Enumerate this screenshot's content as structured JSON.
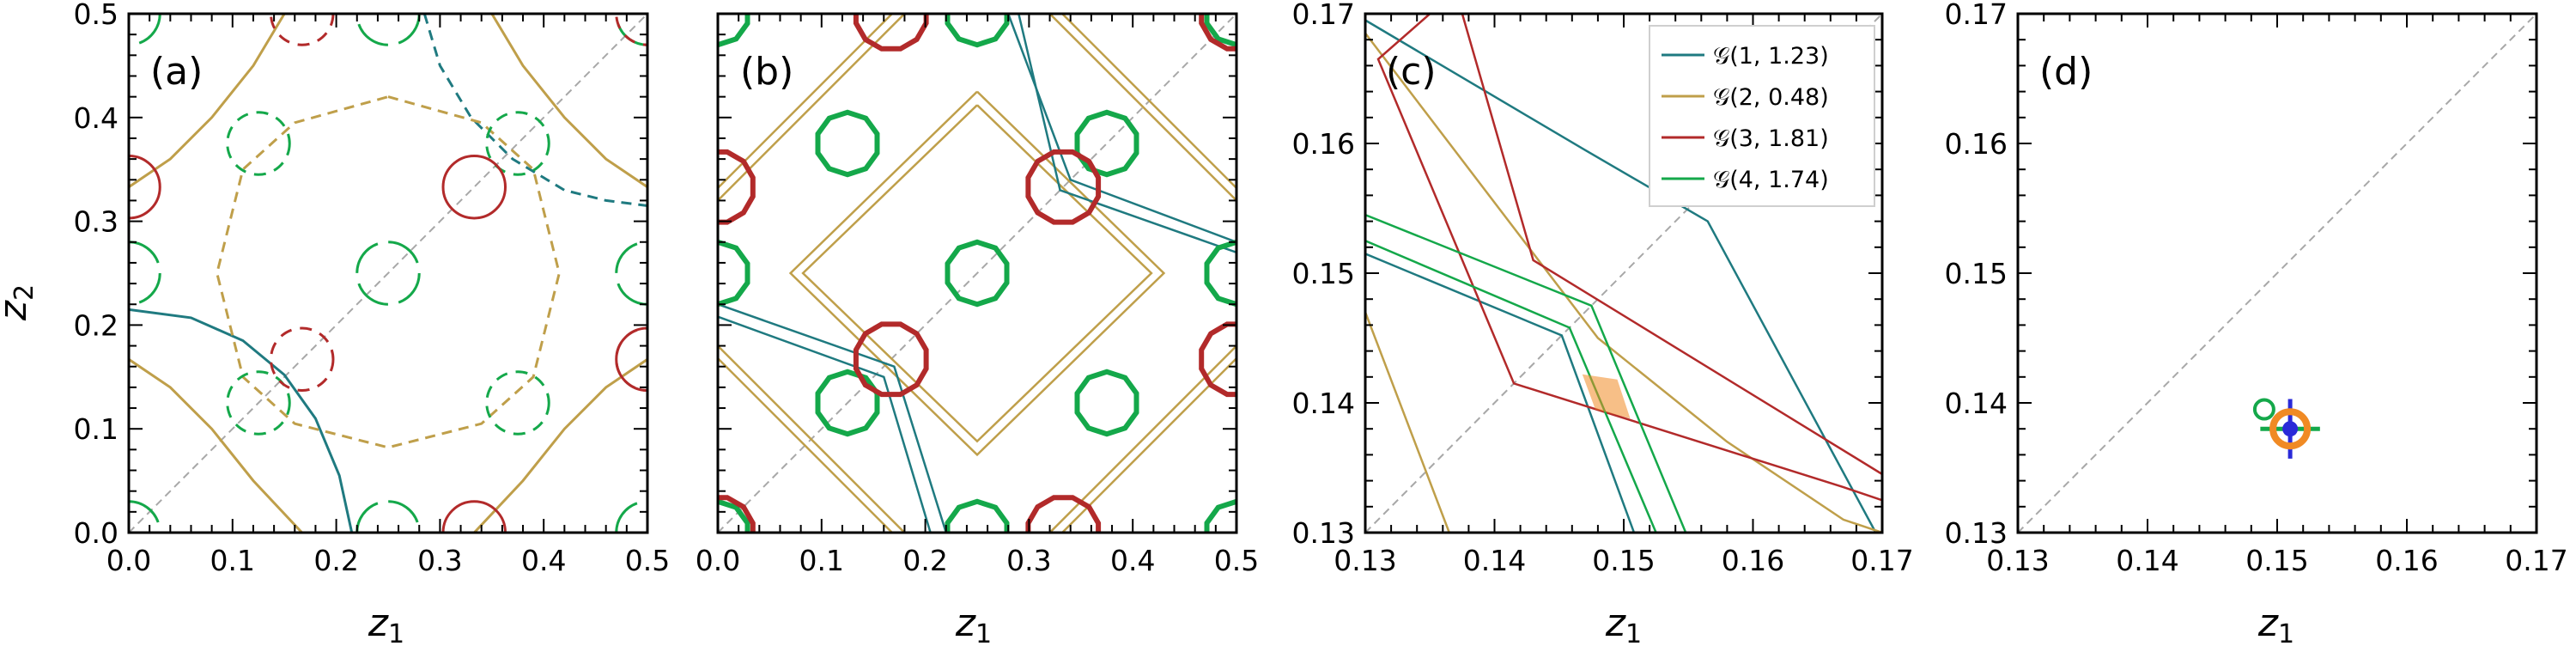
{
  "colors": {
    "teal": "#1f7a80",
    "gold": "#bf9f4a",
    "red": "#b22a2a",
    "green": "#14a84a",
    "orange": "#f08a24",
    "blue": "#2a2ad8",
    "diag": "#a8a8a8"
  },
  "axes": {
    "xlabel": "z",
    "xlabel_sub": "1",
    "ylabel": "z",
    "ylabel_sub": "2"
  },
  "legend": {
    "items": [
      {
        "label": "𝒢(1, 1.23)",
        "color": "#1f7a80"
      },
      {
        "label": "𝒢(2, 0.48)",
        "color": "#bf9f4a"
      },
      {
        "label": "𝒢(3, 1.81)",
        "color": "#b22a2a"
      },
      {
        "label": "𝒢(4, 1.74)",
        "color": "#14a84a"
      }
    ]
  },
  "chart_data": [
    {
      "panel": "(a)",
      "type": "line",
      "xlim": [
        0,
        0.5
      ],
      "ylim": [
        0,
        0.5
      ],
      "xticks": [
        "0.0",
        "0.1",
        "0.2",
        "0.3",
        "0.4",
        "0.5"
      ],
      "yticks": [
        "0.0",
        "0.1",
        "0.2",
        "0.3",
        "0.4",
        "0.5"
      ],
      "diagonal": true,
      "circles": [
        {
          "color": "green",
          "r": 0.03,
          "style": "dashed",
          "centers": [
            [
              0.125,
              0.125
            ],
            [
              0.375,
              0.125
            ],
            [
              0.125,
              0.375
            ],
            [
              0.375,
              0.375
            ]
          ]
        },
        {
          "color": "green",
          "r": 0.03,
          "style": "broken",
          "centers": [
            [
              0.25,
              0.25
            ],
            [
              0,
              0.25
            ],
            [
              0.5,
              0.25
            ],
            [
              0.25,
              0
            ],
            [
              0.25,
              0.5
            ],
            [
              0,
              0
            ],
            [
              0.5,
              0
            ],
            [
              0,
              0.5
            ],
            [
              0.5,
              0.5
            ]
          ]
        },
        {
          "color": "red",
          "r": 0.03,
          "style": "solid",
          "centers": [
            [
              0.333,
              0.333
            ],
            [
              0,
              0.333
            ],
            [
              0.333,
              0
            ],
            [
              0.5,
              0.167
            ]
          ]
        },
        {
          "color": "red",
          "r": 0.03,
          "style": "dashed",
          "centers": [
            [
              0.167,
              0.167
            ],
            [
              0.167,
              0.5
            ],
            [
              0.5,
              0.5
            ],
            [
              0.5,
              0.167
            ]
          ]
        }
      ],
      "curves": [
        {
          "color": "teal",
          "style": "solid",
          "points": [
            [
              0,
              0.215
            ],
            [
              0.06,
              0.207
            ],
            [
              0.11,
              0.185
            ],
            [
              0.15,
              0.152
            ],
            [
              0.18,
              0.11
            ],
            [
              0.203,
              0.055
            ],
            [
              0.215,
              0
            ]
          ]
        },
        {
          "color": "teal",
          "style": "dashed",
          "points": [
            [
              0.285,
              0.5
            ],
            [
              0.3,
              0.45
            ],
            [
              0.33,
              0.4
            ],
            [
              0.37,
              0.36
            ],
            [
              0.42,
              0.33
            ],
            [
              0.46,
              0.32
            ],
            [
              0.5,
              0.315
            ]
          ]
        },
        {
          "color": "gold",
          "style": "dashed",
          "points": [
            [
              0.25,
              0.42
            ],
            [
              0.34,
              0.395
            ],
            [
              0.39,
              0.35
            ],
            [
              0.415,
              0.25
            ],
            [
              0.39,
              0.15
            ],
            [
              0.34,
              0.105
            ],
            [
              0.25,
              0.082
            ],
            [
              0.16,
              0.105
            ],
            [
              0.11,
              0.15
            ],
            [
              0.085,
              0.25
            ],
            [
              0.11,
              0.35
            ],
            [
              0.16,
              0.395
            ],
            [
              0.25,
              0.42
            ]
          ]
        },
        {
          "color": "gold",
          "style": "solid",
          "points": [
            [
              0,
              0.333
            ],
            [
              0.04,
              0.36
            ],
            [
              0.08,
              0.4
            ],
            [
              0.12,
              0.45
            ],
            [
              0.15,
              0.5
            ]
          ]
        },
        {
          "color": "gold",
          "style": "solid",
          "points": [
            [
              0,
              0.167
            ],
            [
              0.04,
              0.14
            ],
            [
              0.08,
              0.1
            ],
            [
              0.12,
              0.05
            ],
            [
              0.167,
              0
            ]
          ]
        },
        {
          "color": "gold",
          "style": "solid",
          "points": [
            [
              0.5,
              0.333
            ],
            [
              0.46,
              0.36
            ],
            [
              0.42,
              0.4
            ],
            [
              0.38,
              0.45
            ],
            [
              0.35,
              0.5
            ]
          ]
        },
        {
          "color": "gold",
          "style": "solid",
          "points": [
            [
              0.5,
              0.167
            ],
            [
              0.46,
              0.14
            ],
            [
              0.42,
              0.1
            ],
            [
              0.38,
              0.05
            ],
            [
              0.333,
              0
            ]
          ]
        }
      ]
    },
    {
      "panel": "(b)",
      "type": "line",
      "xlim": [
        0,
        0.5
      ],
      "ylim": [
        0,
        0.5
      ],
      "xticks": [
        "0.0",
        "0.1",
        "0.2",
        "0.3",
        "0.4",
        "0.5"
      ],
      "yticks": [],
      "diagonal": true,
      "polygons": [
        {
          "color": "green",
          "r": 0.03,
          "n": 10,
          "centers": [
            [
              0.125,
              0.125
            ],
            [
              0.375,
              0.125
            ],
            [
              0.125,
              0.375
            ],
            [
              0.375,
              0.375
            ],
            [
              0.25,
              0.25
            ],
            [
              0,
              0.25
            ],
            [
              0.5,
              0.25
            ],
            [
              0.25,
              0
            ],
            [
              0.25,
              0.5
            ],
            [
              0,
              0
            ],
            [
              0.5,
              0
            ],
            [
              0,
              0.5
            ],
            [
              0.5,
              0.5
            ]
          ]
        },
        {
          "color": "red",
          "r": 0.035,
          "n": 12,
          "centers": [
            [
              0.333,
              0.333
            ],
            [
              0.167,
              0.167
            ],
            [
              0,
              0.333
            ],
            [
              0.333,
              0
            ],
            [
              0.5,
              0.167
            ],
            [
              0.167,
              0.5
            ],
            [
              0.5,
              0.5
            ],
            [
              0,
              0
            ]
          ]
        }
      ],
      "polylines": [
        {
          "color": "gold",
          "points": [
            [
              0.25,
              0.425
            ],
            [
              0.43,
              0.25
            ],
            [
              0.25,
              0.075
            ],
            [
              0.07,
              0.25
            ],
            [
              0.25,
              0.425
            ]
          ]
        },
        {
          "color": "gold",
          "points": [
            [
              0.25,
              0.412
            ],
            [
              0.418,
              0.25
            ],
            [
              0.25,
              0.088
            ],
            [
              0.082,
              0.25
            ],
            [
              0.25,
              0.412
            ]
          ]
        },
        {
          "color": "gold",
          "points": [
            [
              0,
              0.18
            ],
            [
              0.18,
              0
            ]
          ]
        },
        {
          "color": "gold",
          "points": [
            [
              0,
              0.168
            ],
            [
              0.168,
              0
            ]
          ]
        },
        {
          "color": "gold",
          "points": [
            [
              0,
              0.32
            ],
            [
              0.18,
              0.5
            ]
          ]
        },
        {
          "color": "gold",
          "points": [
            [
              0,
              0.332
            ],
            [
              0.168,
              0.5
            ]
          ]
        },
        {
          "color": "gold",
          "points": [
            [
              0.5,
              0.32
            ],
            [
              0.32,
              0.5
            ]
          ]
        },
        {
          "color": "gold",
          "points": [
            [
              0.5,
              0.332
            ],
            [
              0.332,
              0.5
            ]
          ]
        },
        {
          "color": "gold",
          "points": [
            [
              0.5,
              0.18
            ],
            [
              0.32,
              0
            ]
          ]
        },
        {
          "color": "gold",
          "points": [
            [
              0.5,
              0.168
            ],
            [
              0.332,
              0
            ]
          ]
        },
        {
          "color": "teal",
          "points": [
            [
              0,
              0.22
            ],
            [
              0.17,
              0.16
            ],
            [
              0.22,
              0
            ]
          ]
        },
        {
          "color": "teal",
          "points": [
            [
              0,
              0.208
            ],
            [
              0.16,
              0.15
            ],
            [
              0.205,
              0
            ]
          ]
        },
        {
          "color": "teal",
          "points": [
            [
              0.5,
              0.28
            ],
            [
              0.34,
              0.34
            ],
            [
              0.28,
              0.5
            ]
          ]
        },
        {
          "color": "teal",
          "points": [
            [
              0.5,
              0.27
            ],
            [
              0.33,
              0.33
            ],
            [
              0.29,
              0.5
            ]
          ]
        }
      ]
    },
    {
      "panel": "(c)",
      "type": "line",
      "xlim": [
        0.13,
        0.17
      ],
      "ylim": [
        0.13,
        0.17
      ],
      "xticks": [
        "0.13",
        "0.14",
        "0.15",
        "0.16",
        "0.17"
      ],
      "yticks": [
        "0.13",
        "0.14",
        "0.15",
        "0.16",
        "0.17"
      ],
      "diagonal": true,
      "polylines": [
        {
          "color": "teal",
          "points": [
            [
              0.13,
              0.1695
            ],
            [
              0.147,
              0.1595
            ],
            [
              0.1565,
              0.154
            ],
            [
              0.1695,
              0.13
            ]
          ]
        },
        {
          "color": "teal",
          "points": [
            [
              0.13,
              0.1515
            ],
            [
              0.1452,
              0.1452
            ],
            [
              0.1508,
              0.13
            ]
          ]
        },
        {
          "color": "gold",
          "points": [
            [
              0.13,
              0.1685
            ],
            [
              0.148,
              0.145
            ],
            [
              0.158,
              0.137
            ],
            [
              0.167,
              0.131
            ],
            [
              0.17,
              0.13
            ]
          ]
        },
        {
          "color": "gold",
          "points": [
            [
              0.13,
              0.147
            ],
            [
              0.1365,
              0.13
            ]
          ]
        },
        {
          "color": "red",
          "points": [
            [
              0.1375,
              0.17
            ],
            [
              0.143,
              0.151
            ],
            [
              0.17,
              0.1345
            ]
          ]
        },
        {
          "color": "red",
          "points": [
            [
              0.135,
              0.17
            ],
            [
              0.131,
              0.1665
            ],
            [
              0.1415,
              0.1415
            ],
            [
              0.167,
              0.1335
            ],
            [
              0.17,
              0.1325
            ]
          ]
        },
        {
          "color": "green",
          "points": [
            [
              0.13,
              0.1545
            ],
            [
              0.1475,
              0.1475
            ],
            [
              0.1548,
              0.13
            ]
          ]
        },
        {
          "color": "green",
          "points": [
            [
              0.13,
              0.1525
            ],
            [
              0.1458,
              0.1458
            ],
            [
              0.1525,
              0.13
            ]
          ]
        }
      ],
      "filled_region": {
        "color": "orange",
        "points": [
          [
            0.1468,
            0.1422
          ],
          [
            0.1495,
            0.1418
          ],
          [
            0.1505,
            0.1388
          ],
          [
            0.1478,
            0.1395
          ]
        ]
      }
    },
    {
      "panel": "(d)",
      "type": "scatter",
      "xlim": [
        0.13,
        0.17
      ],
      "ylim": [
        0.13,
        0.17
      ],
      "xticks": [
        "0.13",
        "0.14",
        "0.15",
        "0.16",
        "0.17"
      ],
      "yticks": [
        "0.13",
        "0.14",
        "0.15",
        "0.16",
        "0.17"
      ],
      "diagonal": true,
      "points": [
        {
          "x": 0.151,
          "y": 0.138,
          "marker": "orange-ring"
        },
        {
          "x": 0.151,
          "y": 0.138,
          "marker": "blue-dot-crossbar"
        },
        {
          "x": 0.149,
          "y": 0.1395,
          "marker": "green-ring"
        }
      ],
      "errorbars": {
        "x": 0.151,
        "y": 0.138,
        "xerr": 0.0023,
        "yerr": 0.0023
      }
    }
  ]
}
